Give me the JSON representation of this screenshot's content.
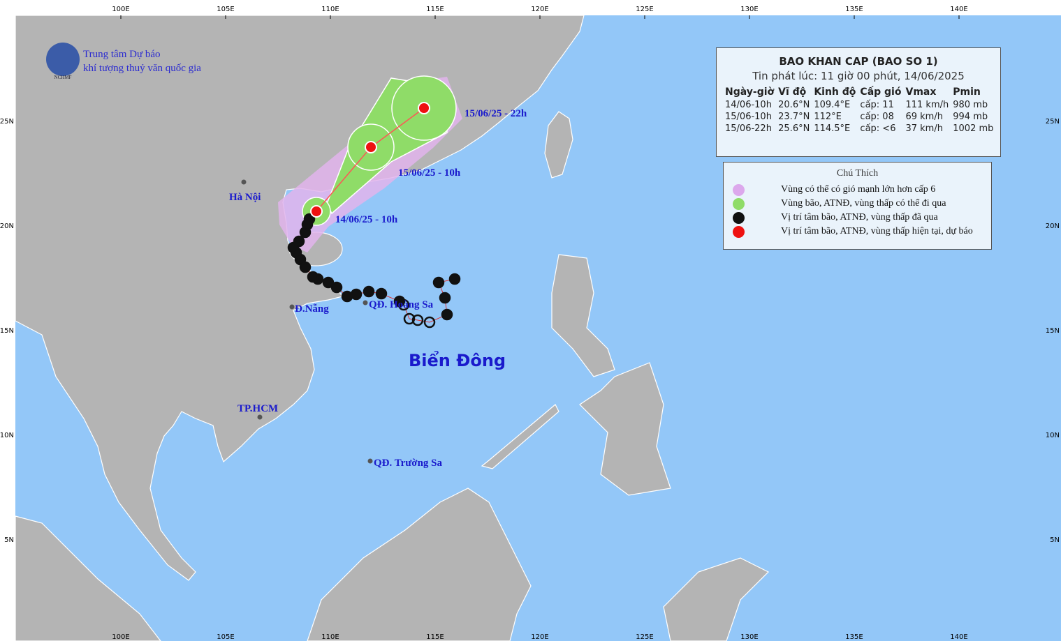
{
  "header": {
    "org_line1": "Trung tâm Dự báo",
    "org_line2": "khí tượng thuỷ văn quốc gia",
    "logo": "NCHMF"
  },
  "map": {
    "lon_labels": [
      "100E",
      "105E",
      "110E",
      "115E",
      "120E",
      "125E",
      "130E",
      "135E",
      "140E"
    ],
    "lat_labels": [
      "25N",
      "20N",
      "15N",
      "10N",
      "5N"
    ],
    "places": [
      "Hà Nội",
      "Đ.Nẵng",
      "QĐ. Hoàng Sa",
      "TP.HCM",
      "QĐ. Trường Sa"
    ],
    "sea_label": "Biển Đông",
    "forecast_labels": [
      "15/06/25 - 22h",
      "15/06/25 - 10h",
      "14/06/25 - 10h"
    ]
  },
  "bulletin": {
    "title": "BAO KHAN CAP (BAO SO 1)",
    "issued": "Tin phát lúc: 11 giờ 00 phút, 14/06/2025",
    "columns": [
      "Ngày-giờ",
      "Vĩ độ",
      "Kinh độ",
      "Cấp gió",
      "Vmax",
      "Pmin"
    ],
    "rows": [
      [
        "14/06-10h",
        "20.6°N",
        "109.4°E",
        "cấp: 11",
        "111 km/h",
        "980 mb"
      ],
      [
        "15/06-10h",
        "23.7°N",
        "112°E",
        "cấp: 08",
        "69 km/h",
        "994 mb"
      ],
      [
        "15/06-22h",
        "25.6°N",
        "114.5°E",
        "cấp: <6",
        "37 km/h",
        "1002 mb"
      ]
    ]
  },
  "legend": {
    "title": "Chú Thích",
    "items": [
      "Vùng có thể có gió mạnh lớn hơn cấp 6",
      "Vùng bão, ATNĐ, vùng thấp có thể đi qua",
      "Vị trí tâm bão, ATNĐ, vùng thấp đã qua",
      "Vị trí tâm bão, ATNĐ, vùng thấp hiện tại, dự báo"
    ]
  }
}
